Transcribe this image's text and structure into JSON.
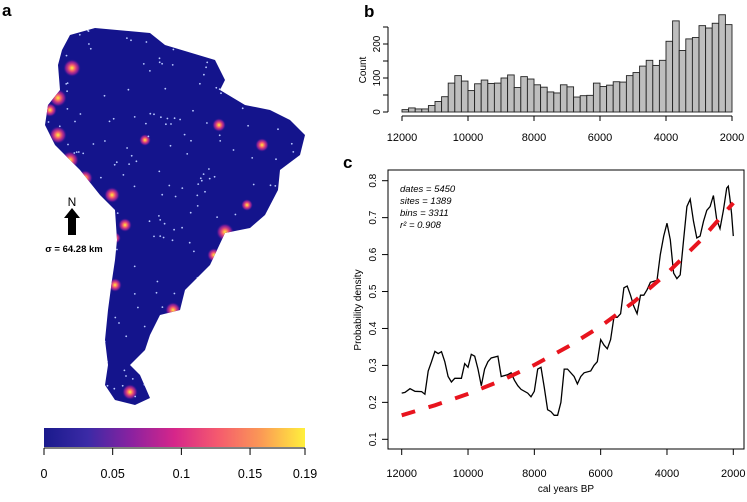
{
  "panel_labels": {
    "a": "a",
    "b": "b",
    "c": "c"
  },
  "colors": {
    "map_base": "#14148c",
    "hist_fill": "#bebebe",
    "line": "#000000",
    "fit": "#e8141e"
  },
  "map": {
    "north_label": "N",
    "sigma_label": "σ = 64.28 km",
    "colorbar": {
      "ticks": [
        "0",
        "0.05",
        "0.1",
        "0.15",
        "0.19"
      ],
      "tick_values": [
        0,
        0.05,
        0.1,
        0.15,
        0.19
      ],
      "range": [
        0,
        0.19
      ],
      "stops": [
        "#1a1a8c",
        "#3b2aa6",
        "#8a22a0",
        "#d6268a",
        "#f55a6e",
        "#fb9a55",
        "#fff03c"
      ]
    }
  },
  "chart_data": [
    {
      "type": "bar",
      "panel": "b",
      "title": "",
      "xlabel": "",
      "ylabel": "Count",
      "bin_width": 200,
      "bin_start": 12000,
      "xlim": [
        12000,
        2000
      ],
      "ylim": [
        0,
        290
      ],
      "x_ticks": [
        "12000",
        "10000",
        "8000",
        "6000",
        "4000",
        "2000"
      ],
      "x_tick_values": [
        12000,
        10000,
        8000,
        6000,
        4000,
        2000
      ],
      "y_ticks": [
        "0",
        "100",
        "200"
      ],
      "y_tick_values": [
        0,
        50,
        100,
        150,
        200,
        250
      ],
      "values": [
        7,
        12,
        9,
        9,
        19,
        31,
        45,
        85,
        107,
        91,
        63,
        83,
        94,
        84,
        85,
        100,
        109,
        72,
        104,
        97,
        80,
        73,
        59,
        56,
        80,
        74,
        44,
        48,
        49,
        85,
        75,
        79,
        89,
        88,
        107,
        116,
        135,
        152,
        137,
        152,
        208,
        268,
        181,
        215,
        219,
        254,
        247,
        261,
        286,
        257
      ]
    },
    {
      "type": "line",
      "panel": "c",
      "xlabel": "cal years BP",
      "ylabel": "Probability density",
      "xlim": [
        12000,
        2000
      ],
      "ylim": [
        0.1,
        0.8
      ],
      "x_ticks": [
        "12000",
        "10000",
        "8000",
        "6000",
        "4000",
        "2000"
      ],
      "x_tick_values": [
        12000,
        10000,
        8000,
        6000,
        4000,
        2000
      ],
      "y_ticks": [
        "0.1",
        "0.2",
        "0.3",
        "0.4",
        "0.5",
        "0.6",
        "0.7",
        "0.8"
      ],
      "y_tick_values": [
        0.1,
        0.2,
        0.3,
        0.4,
        0.5,
        0.6,
        0.7,
        0.8
      ],
      "annotations": [
        "dates = 5450",
        "sites = 1389",
        "bins = 3311",
        "r² = 0.908"
      ],
      "series": [
        {
          "name": "SPD",
          "x": [
            12000,
            11900,
            11750,
            11600,
            11400,
            11300,
            11200,
            11100,
            11000,
            10900,
            10800,
            10700,
            10600,
            10500,
            10400,
            10200,
            10100,
            10000,
            9900,
            9800,
            9700,
            9600,
            9500,
            9400,
            9300,
            9100,
            9000,
            8800,
            8700,
            8600,
            8500,
            8400,
            8200,
            8100,
            8000,
            7900,
            7800,
            7700,
            7600,
            7500,
            7400,
            7300,
            7200,
            7100,
            7000,
            6800,
            6700,
            6600,
            6500,
            6300,
            6200,
            6100,
            6000,
            5900,
            5800,
            5700,
            5600,
            5500,
            5400,
            5300,
            5200,
            5100,
            5000,
            4900,
            4800,
            4700,
            4600,
            4500,
            4300,
            4200,
            4100,
            4000,
            3900,
            3800,
            3700,
            3600,
            3500,
            3400,
            3300,
            3200,
            3100,
            3000,
            2900,
            2800,
            2700,
            2600,
            2500,
            2400,
            2300,
            2200,
            2150,
            2100,
            2050,
            2000
          ],
          "y": [
            0.225,
            0.227,
            0.237,
            0.23,
            0.229,
            0.222,
            0.285,
            0.31,
            0.338,
            0.332,
            0.337,
            0.31,
            0.27,
            0.255,
            0.265,
            0.265,
            0.305,
            0.295,
            0.33,
            0.325,
            0.29,
            0.245,
            0.29,
            0.31,
            0.32,
            0.325,
            0.27,
            0.275,
            0.28,
            0.26,
            0.245,
            0.235,
            0.225,
            0.215,
            0.23,
            0.29,
            0.295,
            0.24,
            0.18,
            0.175,
            0.165,
            0.165,
            0.2,
            0.29,
            0.29,
            0.27,
            0.25,
            0.27,
            0.28,
            0.285,
            0.3,
            0.31,
            0.37,
            0.355,
            0.345,
            0.37,
            0.43,
            0.43,
            0.44,
            0.51,
            0.515,
            0.49,
            0.46,
            0.44,
            0.49,
            0.49,
            0.505,
            0.525,
            0.53,
            0.6,
            0.65,
            0.685,
            0.64,
            0.55,
            0.535,
            0.545,
            0.64,
            0.73,
            0.75,
            0.69,
            0.645,
            0.65,
            0.69,
            0.72,
            0.73,
            0.76,
            0.695,
            0.67,
            0.72,
            0.78,
            0.785,
            0.75,
            0.71,
            0.65
          ]
        },
        {
          "name": "Exponential fit",
          "x": [
            12000,
            11000,
            10000,
            9000,
            8000,
            7000,
            6000,
            5000,
            4000,
            3000,
            2000
          ],
          "y": [
            0.165,
            0.192,
            0.223,
            0.259,
            0.301,
            0.35,
            0.406,
            0.472,
            0.549,
            0.637,
            0.74
          ]
        }
      ]
    }
  ]
}
